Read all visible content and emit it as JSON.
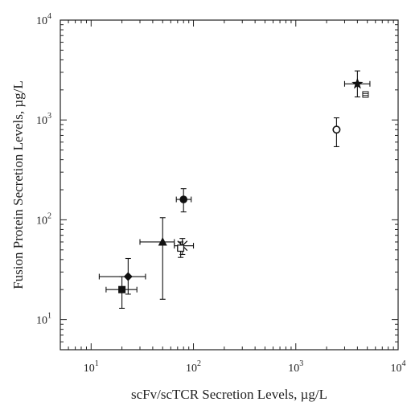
{
  "chart_data": {
    "type": "scatter",
    "title": "",
    "xlabel": "scFv/scTCR Secretion Levels, µg/L",
    "ylabel": "Fusion Protein Secretion Levels, µg/L",
    "xscale": "log",
    "yscale": "log",
    "xlim": [
      5,
      10000
    ],
    "ylim": [
      5,
      10000
    ],
    "grid": false,
    "legend": "none",
    "xticks": [
      {
        "value": 10,
        "base": "10",
        "exp": "1"
      },
      {
        "value": 100,
        "base": "10",
        "exp": "2"
      },
      {
        "value": 1000,
        "base": "10",
        "exp": "3"
      },
      {
        "value": 10000,
        "base": "10",
        "exp": "4"
      }
    ],
    "yticks": [
      {
        "value": 10,
        "base": "10",
        "exp": "1"
      },
      {
        "value": 100,
        "base": "10",
        "exp": "2"
      },
      {
        "value": 1000,
        "base": "10",
        "exp": "3"
      },
      {
        "value": 10000,
        "base": "10",
        "exp": "4"
      }
    ],
    "points": [
      {
        "marker": "square-filled",
        "x": 20,
        "y": 20,
        "x_err": [
          14,
          28
        ],
        "y_err": [
          13,
          27
        ]
      },
      {
        "marker": "diamond-filled",
        "x": 23,
        "y": 27,
        "x_err": [
          12,
          34
        ],
        "y_err": [
          18,
          41
        ]
      },
      {
        "marker": "triangle-filled",
        "x": 50,
        "y": 60,
        "x_err": [
          30,
          65
        ],
        "y_err": [
          16,
          105
        ]
      },
      {
        "marker": "asterisk",
        "x": 78,
        "y": 55,
        "x_err": [
          65,
          100
        ],
        "y_err": [
          45,
          65
        ]
      },
      {
        "marker": "square-open",
        "x": 75,
        "y": 52,
        "x_err": [
          70,
          80
        ],
        "y_err": [
          42,
          60
        ]
      },
      {
        "marker": "circle-filled",
        "x": 80,
        "y": 160,
        "x_err": [
          68,
          95
        ],
        "y_err": [
          120,
          205
        ]
      },
      {
        "marker": "circle-open",
        "x": 2500,
        "y": 800,
        "x_err": [
          2450,
          2550
        ],
        "y_err": [
          540,
          1050
        ]
      },
      {
        "marker": "star-filled",
        "x": 4000,
        "y": 2300,
        "x_err": [
          3000,
          5300
        ],
        "y_err": [
          1700,
          3100
        ]
      },
      {
        "marker": "square-hatched",
        "x": 4800,
        "y": 1800,
        "x_err": [
          4700,
          4900
        ],
        "y_err": [
          1750,
          1850
        ]
      }
    ]
  }
}
